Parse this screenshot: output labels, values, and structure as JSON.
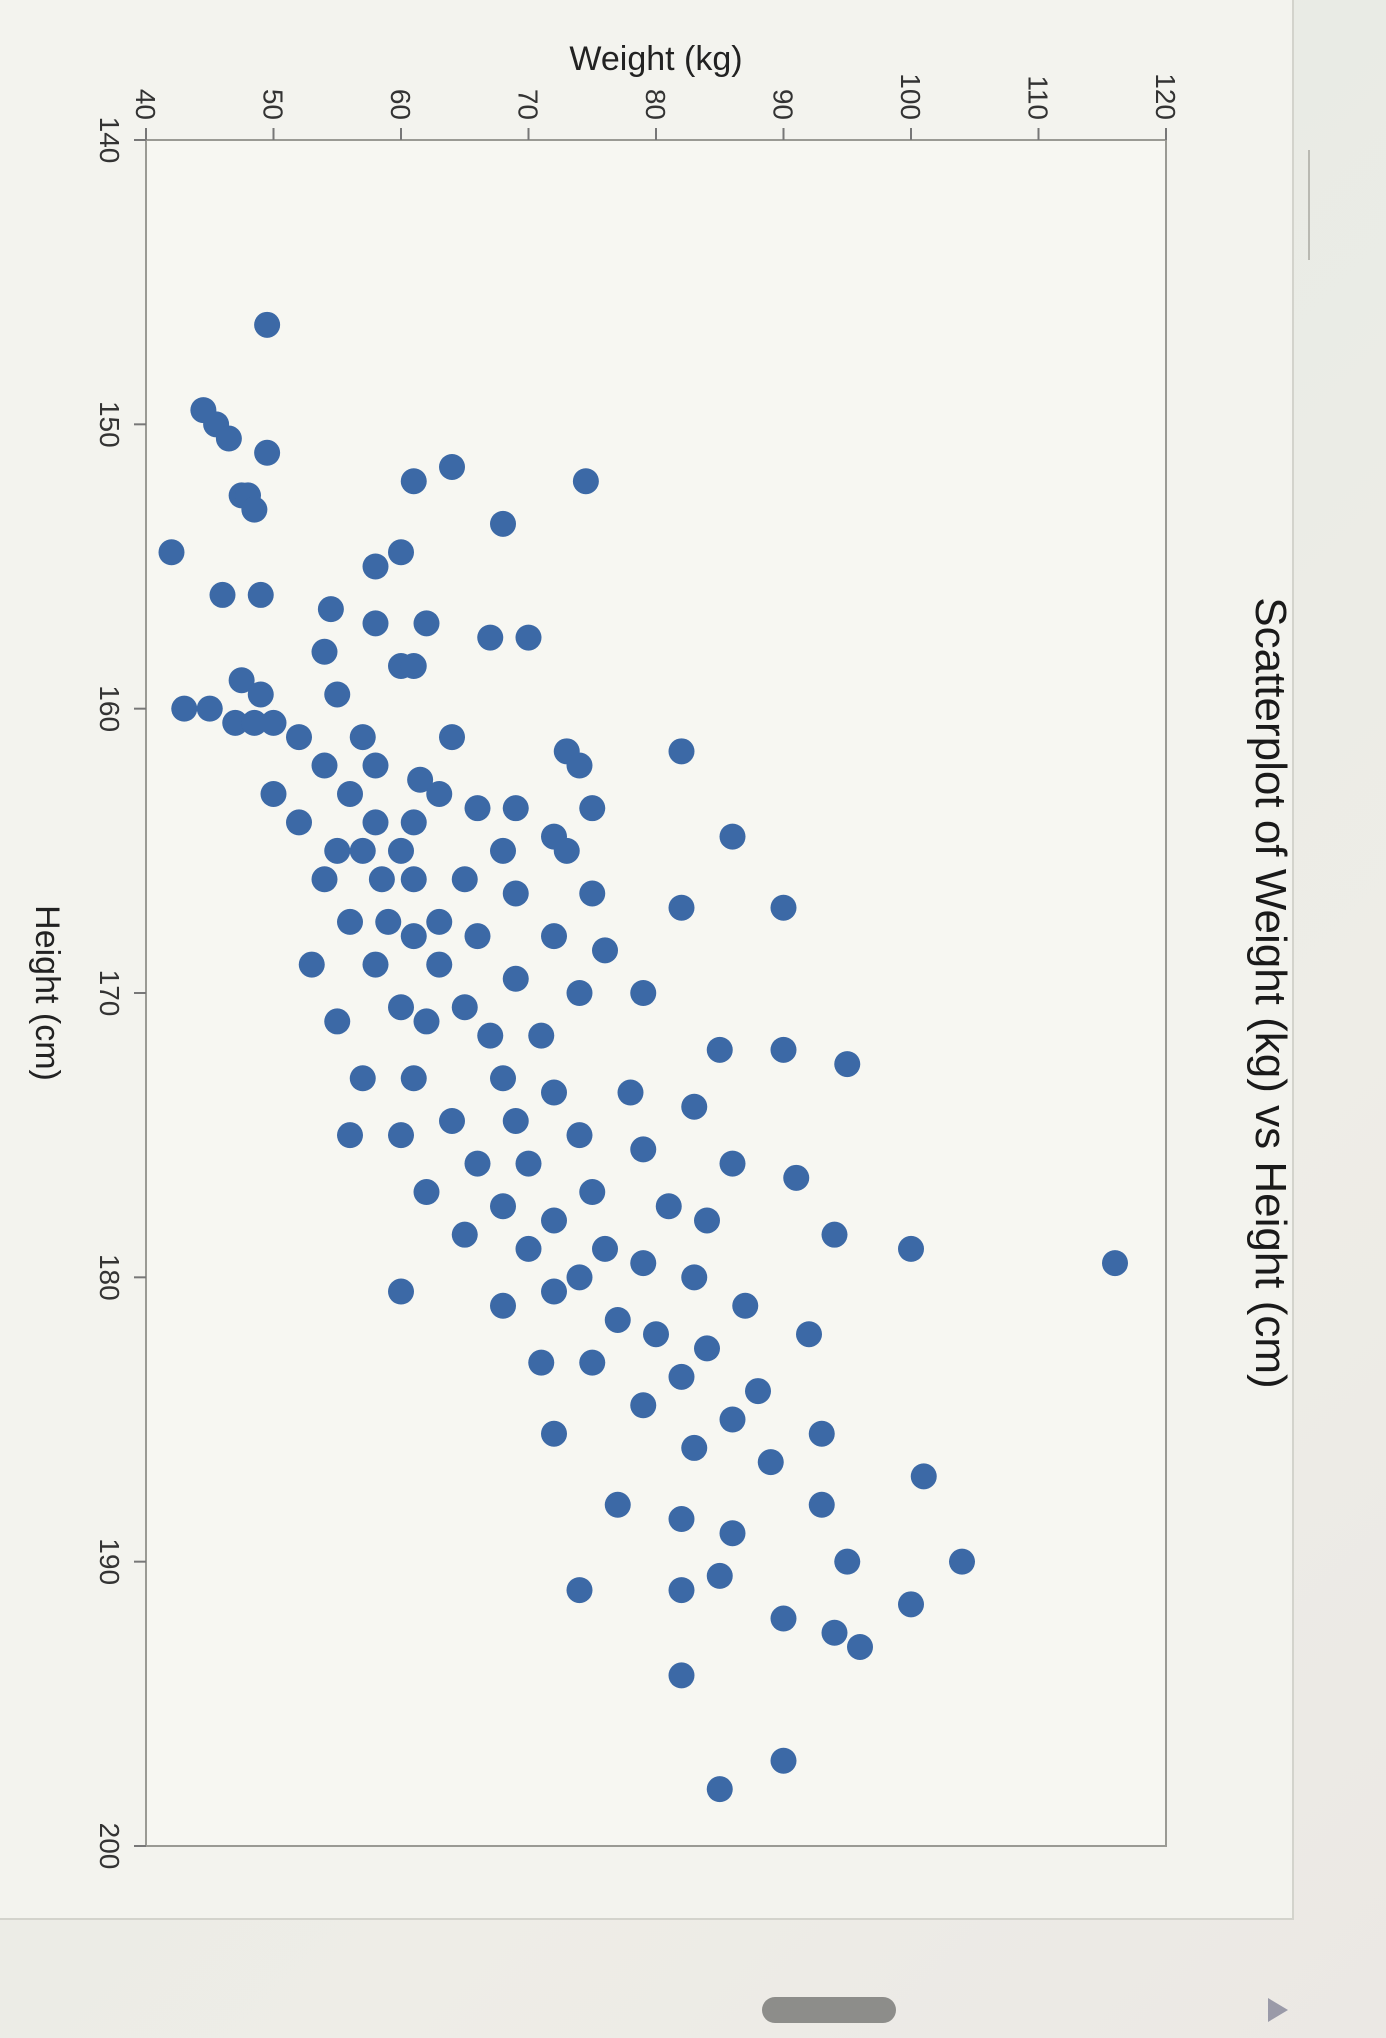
{
  "chart_data": {
    "type": "scatter",
    "title": "Scatterplot of Weight (kg) vs Height (cm)",
    "xlabel": "Height (cm)",
    "ylabel": "Weight (kg)",
    "xlim": [
      140,
      200
    ],
    "ylim": [
      40,
      120
    ],
    "xticks": [
      "140",
      "150",
      "160",
      "170",
      "180",
      "190",
      "200"
    ],
    "yticks": [
      "40",
      "50",
      "60",
      "70",
      "80",
      "90",
      "100",
      "110",
      "120"
    ],
    "grid": false,
    "legend": "none",
    "point_color": "#3c69a6",
    "points": [
      [
        146.5,
        49.5
      ],
      [
        149.5,
        44.5
      ],
      [
        150,
        45.5
      ],
      [
        150.5,
        46.5
      ],
      [
        151,
        49.5
      ],
      [
        151.5,
        64
      ],
      [
        152,
        61
      ],
      [
        152,
        74.5
      ],
      [
        152.5,
        47.5
      ],
      [
        152.5,
        48
      ],
      [
        153,
        48.5
      ],
      [
        153.5,
        68
      ],
      [
        154.5,
        42
      ],
      [
        154.5,
        60
      ],
      [
        155,
        58
      ],
      [
        156,
        46
      ],
      [
        156,
        49
      ],
      [
        156.5,
        54.5
      ],
      [
        157,
        58
      ],
      [
        157,
        62
      ],
      [
        157.5,
        67
      ],
      [
        157.5,
        70
      ],
      [
        158,
        54
      ],
      [
        158.5,
        60
      ],
      [
        158.5,
        61
      ],
      [
        159,
        47.5
      ],
      [
        159.5,
        49
      ],
      [
        159.5,
        55
      ],
      [
        160,
        43
      ],
      [
        160,
        45
      ],
      [
        160.5,
        47
      ],
      [
        160.5,
        48.5
      ],
      [
        160.5,
        50
      ],
      [
        161,
        52
      ],
      [
        161,
        57
      ],
      [
        161,
        64
      ],
      [
        161.5,
        73
      ],
      [
        161.5,
        82
      ],
      [
        162,
        54
      ],
      [
        162,
        58
      ],
      [
        162,
        74
      ],
      [
        162.5,
        61.5
      ],
      [
        163,
        50
      ],
      [
        163,
        56
      ],
      [
        163,
        63
      ],
      [
        163.5,
        66
      ],
      [
        163.5,
        69
      ],
      [
        163.5,
        75
      ],
      [
        164,
        52
      ],
      [
        164,
        58
      ],
      [
        164,
        61
      ],
      [
        164.5,
        72
      ],
      [
        164.5,
        86
      ],
      [
        165,
        55
      ],
      [
        165,
        57
      ],
      [
        165,
        60
      ],
      [
        165,
        68
      ],
      [
        165,
        73
      ],
      [
        166,
        54
      ],
      [
        166,
        58.5
      ],
      [
        166,
        61
      ],
      [
        166,
        65
      ],
      [
        166.5,
        69
      ],
      [
        166.5,
        75
      ],
      [
        167,
        82
      ],
      [
        167,
        90
      ],
      [
        167.5,
        56
      ],
      [
        167.5,
        59
      ],
      [
        167.5,
        63
      ],
      [
        168,
        61
      ],
      [
        168,
        66
      ],
      [
        168,
        72
      ],
      [
        168.5,
        76
      ],
      [
        169,
        53
      ],
      [
        169,
        58
      ],
      [
        169,
        63
      ],
      [
        169.5,
        69
      ],
      [
        170,
        74
      ],
      [
        170,
        79
      ],
      [
        170.5,
        60
      ],
      [
        170.5,
        65
      ],
      [
        171,
        55
      ],
      [
        171,
        62
      ],
      [
        171.5,
        67
      ],
      [
        171.5,
        71
      ],
      [
        172,
        85
      ],
      [
        172,
        90
      ],
      [
        172.5,
        95
      ],
      [
        173,
        57
      ],
      [
        173,
        61
      ],
      [
        173,
        68
      ],
      [
        173.5,
        72
      ],
      [
        173.5,
        78
      ],
      [
        174,
        83
      ],
      [
        174.5,
        64
      ],
      [
        174.5,
        69
      ],
      [
        175,
        56
      ],
      [
        175,
        60
      ],
      [
        175,
        74
      ],
      [
        175.5,
        79
      ],
      [
        176,
        66
      ],
      [
        176,
        70
      ],
      [
        176,
        86
      ],
      [
        176.5,
        91
      ],
      [
        177,
        62
      ],
      [
        177,
        75
      ],
      [
        177.5,
        68
      ],
      [
        177.5,
        81
      ],
      [
        178,
        72
      ],
      [
        178,
        84
      ],
      [
        178.5,
        65
      ],
      [
        178.5,
        94
      ],
      [
        179,
        70
      ],
      [
        179,
        76
      ],
      [
        179,
        100
      ],
      [
        179.5,
        79
      ],
      [
        179.5,
        116
      ],
      [
        180,
        74
      ],
      [
        180,
        83
      ],
      [
        180.5,
        60
      ],
      [
        180.5,
        72
      ],
      [
        181,
        68
      ],
      [
        181,
        87
      ],
      [
        181.5,
        77
      ],
      [
        182,
        80
      ],
      [
        182,
        92
      ],
      [
        182.5,
        84
      ],
      [
        183,
        71
      ],
      [
        183,
        75
      ],
      [
        183.5,
        82
      ],
      [
        184,
        88
      ],
      [
        184.5,
        79
      ],
      [
        185,
        86
      ],
      [
        185.5,
        72
      ],
      [
        185.5,
        93
      ],
      [
        186,
        83
      ],
      [
        186.5,
        89
      ],
      [
        187,
        101
      ],
      [
        188,
        77
      ],
      [
        188,
        93
      ],
      [
        188.5,
        82
      ],
      [
        189,
        86
      ],
      [
        190,
        95
      ],
      [
        190,
        104
      ],
      [
        190.5,
        85
      ],
      [
        191,
        82
      ],
      [
        191,
        74
      ],
      [
        191.5,
        100
      ],
      [
        192,
        90
      ],
      [
        192.5,
        94
      ],
      [
        193,
        96
      ],
      [
        194,
        82
      ],
      [
        197,
        90
      ],
      [
        198,
        85
      ]
    ]
  }
}
